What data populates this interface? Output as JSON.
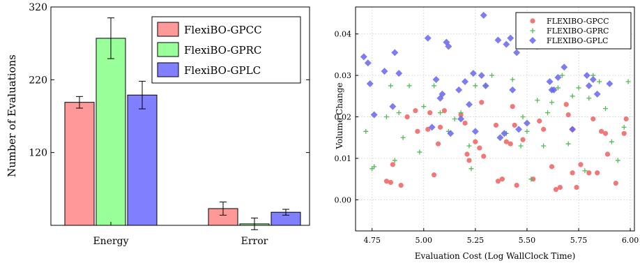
{
  "chart_data": [
    {
      "type": "bar",
      "ylabel": "Number of Evaluations",
      "ylim": [
        20,
        320
      ],
      "yticks": [
        "120",
        "220",
        "320"
      ],
      "categories": [
        "Energy",
        "Error"
      ],
      "legend_position": "top-right",
      "series": [
        {
          "name": "FlexiBO-GPCC",
          "color": "#ff9999",
          "values": [
            189,
            43
          ],
          "err": [
            8,
            9
          ]
        },
        {
          "name": "FlexiBO-GPRC",
          "color": "#99ff99",
          "values": [
            277,
            22
          ],
          "err": [
            28,
            8
          ]
        },
        {
          "name": "FlexiBO-GPLC",
          "color": "#8080ff",
          "values": [
            199,
            38
          ],
          "err": [
            19,
            4
          ]
        }
      ]
    },
    {
      "type": "scatter",
      "xlabel": "Evaluation Cost (Log WallClock Time)",
      "ylabel": "Volume Change",
      "xlim": [
        4.67,
        6.02
      ],
      "ylim": [
        -0.0075,
        0.0465
      ],
      "xticks": [
        "4.75",
        "5.00",
        "5.25",
        "5.50",
        "5.75",
        "6.00"
      ],
      "yticks": [
        "0.00",
        "0.01",
        "0.02",
        "0.03",
        "0.04"
      ],
      "legend_position": "top-right",
      "series": [
        {
          "name": "FLEXIBO-GPCC",
          "color": "#f06060",
          "marker": "circle",
          "points": [
            [
              4.82,
              0.0045
            ],
            [
              4.85,
              0.0085
            ],
            [
              4.84,
              0.0042
            ],
            [
              4.89,
              0.0035
            ],
            [
              4.92,
              0.02
            ],
            [
              4.96,
              0.0215
            ],
            [
              4.97,
              0.0165
            ],
            [
              5.02,
              0.017
            ],
            [
              5.03,
              0.021
            ],
            [
              5.05,
              0.006
            ],
            [
              5.07,
              0.0135
            ],
            [
              5.08,
              0.0175
            ],
            [
              5.1,
              0.0215
            ],
            [
              5.18,
              0.0205
            ],
            [
              5.2,
              0.0185
            ],
            [
              5.21,
              0.011
            ],
            [
              5.22,
              0.0095
            ],
            [
              5.25,
              0.014
            ],
            [
              5.27,
              0.0125
            ],
            [
              5.28,
              0.0235
            ],
            [
              5.29,
              0.0105
            ],
            [
              5.35,
              0.018
            ],
            [
              5.36,
              0.0045
            ],
            [
              5.38,
              0.005
            ],
            [
              5.4,
              0.014
            ],
            [
              5.42,
              0.0135
            ],
            [
              5.43,
              0.0225
            ],
            [
              5.44,
              0.018
            ],
            [
              5.45,
              0.0035
            ],
            [
              5.48,
              0.0145
            ],
            [
              5.53,
              0.005
            ],
            [
              5.56,
              0.019
            ],
            [
              5.58,
              0.017
            ],
            [
              5.62,
              0.008
            ],
            [
              5.64,
              0.0025
            ],
            [
              5.66,
              0.003
            ],
            [
              5.69,
              0.023
            ],
            [
              5.7,
              0.0205
            ],
            [
              5.72,
              0.0065
            ],
            [
              5.74,
              0.003
            ],
            [
              5.76,
              0.0085
            ],
            [
              5.8,
              0.0065
            ],
            [
              5.82,
              0.0195
            ],
            [
              5.84,
              0.0065
            ],
            [
              5.86,
              0.0165
            ],
            [
              5.88,
              0.016
            ],
            [
              5.89,
              0.011
            ],
            [
              5.93,
              0.004
            ],
            [
              5.97,
              0.016
            ],
            [
              5.98,
              0.0195
            ],
            [
              5.72,
              0.017
            ]
          ]
        },
        {
          "name": "FLEXIBO-GPRC",
          "color": "#55bb55",
          "marker": "plus",
          "points": [
            [
              4.72,
              0.0165
            ],
            [
              4.75,
              0.0075
            ],
            [
              4.76,
              0.008
            ],
            [
              4.82,
              0.02
            ],
            [
              4.84,
              0.0275
            ],
            [
              4.86,
              0.0095
            ],
            [
              4.88,
              0.021
            ],
            [
              4.9,
              0.015
            ],
            [
              4.93,
              0.0275
            ],
            [
              4.98,
              0.0115
            ],
            [
              5.0,
              0.0225
            ],
            [
              5.05,
              0.0275
            ],
            [
              5.08,
              0.021
            ],
            [
              5.12,
              0.0165
            ],
            [
              5.15,
              0.0195
            ],
            [
              5.18,
              0.021
            ],
            [
              5.22,
              0.013
            ],
            [
              5.23,
              0.0075
            ],
            [
              5.25,
              0.0275
            ],
            [
              5.3,
              0.0275
            ],
            [
              5.33,
              0.03
            ],
            [
              5.4,
              0.016
            ],
            [
              5.43,
              0.029
            ],
            [
              5.47,
              0.013
            ],
            [
              5.5,
              0.0165
            ],
            [
              5.52,
              0.005
            ],
            [
              5.55,
              0.024
            ],
            [
              5.58,
              0.013
            ],
            [
              5.6,
              0.021
            ],
            [
              5.62,
              0.0235
            ],
            [
              5.65,
              0.027
            ],
            [
              5.67,
              0.03
            ],
            [
              5.7,
              0.0135
            ],
            [
              5.72,
              0.025
            ],
            [
              5.75,
              0.027
            ],
            [
              5.78,
              0.007
            ],
            [
              5.8,
              0.0245
            ],
            [
              5.82,
              0.03
            ],
            [
              5.85,
              0.0285
            ],
            [
              5.88,
              0.022
            ],
            [
              5.91,
              0.014
            ],
            [
              5.94,
              0.0095
            ],
            [
              5.97,
              0.0175
            ],
            [
              5.99,
              0.0285
            ],
            [
              5.48,
              0.02
            ]
          ]
        },
        {
          "name": "FLEXIBO-GPLC",
          "color": "#6666ee",
          "marker": "diamond",
          "points": [
            [
              4.71,
              0.0345
            ],
            [
              4.73,
              0.033
            ],
            [
              4.74,
              0.028
            ],
            [
              4.76,
              0.0205
            ],
            [
              4.81,
              0.031
            ],
            [
              4.85,
              0.0225
            ],
            [
              4.86,
              0.0355
            ],
            [
              4.88,
              0.0305
            ],
            [
              5.02,
              0.039
            ],
            [
              5.04,
              0.0175
            ],
            [
              5.06,
              0.029
            ],
            [
              5.08,
              0.0245
            ],
            [
              5.09,
              0.0255
            ],
            [
              5.11,
              0.038
            ],
            [
              5.12,
              0.037
            ],
            [
              5.13,
              0.016
            ],
            [
              5.17,
              0.0265
            ],
            [
              5.18,
              0.0195
            ],
            [
              5.2,
              0.0285
            ],
            [
              5.22,
              0.023
            ],
            [
              5.24,
              0.0305
            ],
            [
              5.25,
              0.0165
            ],
            [
              5.28,
              0.03
            ],
            [
              5.29,
              0.0445
            ],
            [
              5.3,
              0.0275
            ],
            [
              5.36,
              0.0385
            ],
            [
              5.37,
              0.015
            ],
            [
              5.39,
              0.016
            ],
            [
              5.4,
              0.0375
            ],
            [
              5.42,
              0.039
            ],
            [
              5.43,
              0.0265
            ],
            [
              5.45,
              0.0355
            ],
            [
              5.46,
              0.017
            ],
            [
              5.5,
              0.0185
            ],
            [
              5.52,
              0.04
            ],
            [
              5.55,
              0.037
            ],
            [
              5.57,
              0.038
            ],
            [
              5.61,
              0.0285
            ],
            [
              5.62,
              0.0265
            ],
            [
              5.63,
              0.0265
            ],
            [
              5.65,
              0.0295
            ],
            [
              5.67,
              0.039
            ],
            [
              5.68,
              0.032
            ],
            [
              5.72,
              0.017
            ],
            [
              5.79,
              0.03
            ],
            [
              5.8,
              0.0275
            ],
            [
              5.82,
              0.029
            ],
            [
              5.84,
              0.0255
            ],
            [
              5.87,
              0.0445
            ],
            [
              5.9,
              0.028
            ],
            [
              5.66,
              0.041
            ],
            [
              5.74,
              0.043
            ]
          ]
        }
      ]
    }
  ]
}
